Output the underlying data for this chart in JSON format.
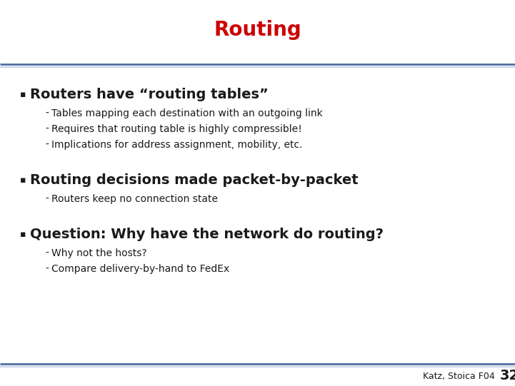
{
  "title": "Routing",
  "title_color": "#cc0000",
  "title_fontsize": 20,
  "bg_color": "#ffffff",
  "text_color": "#1a1a1a",
  "bullet_symbol": "▪",
  "bullet1_text": "Routers have “routing tables”",
  "bullet1_subs": [
    "Tables mapping each destination with an outgoing link",
    "Requires that routing table is highly compressible!",
    "Implications for address assignment, mobility, etc."
  ],
  "bullet2_text": "Routing decisions made packet-by-packet",
  "bullet2_subs": [
    "Routers keep no connection state"
  ],
  "bullet3_text": "Question: Why have the network do routing?",
  "bullet3_subs": [
    "Why not the hosts?",
    "Compare delivery-by-hand to FedEx"
  ],
  "footer_text": "Katz, Stoica F04",
  "footer_number": "32",
  "footer_fontsize": 9,
  "footer_number_fontsize": 14,
  "bullet_fontsize": 14,
  "sub_fontsize": 10,
  "sep_color1": "#4f6ea0",
  "sep_color2": "#b8cce4"
}
